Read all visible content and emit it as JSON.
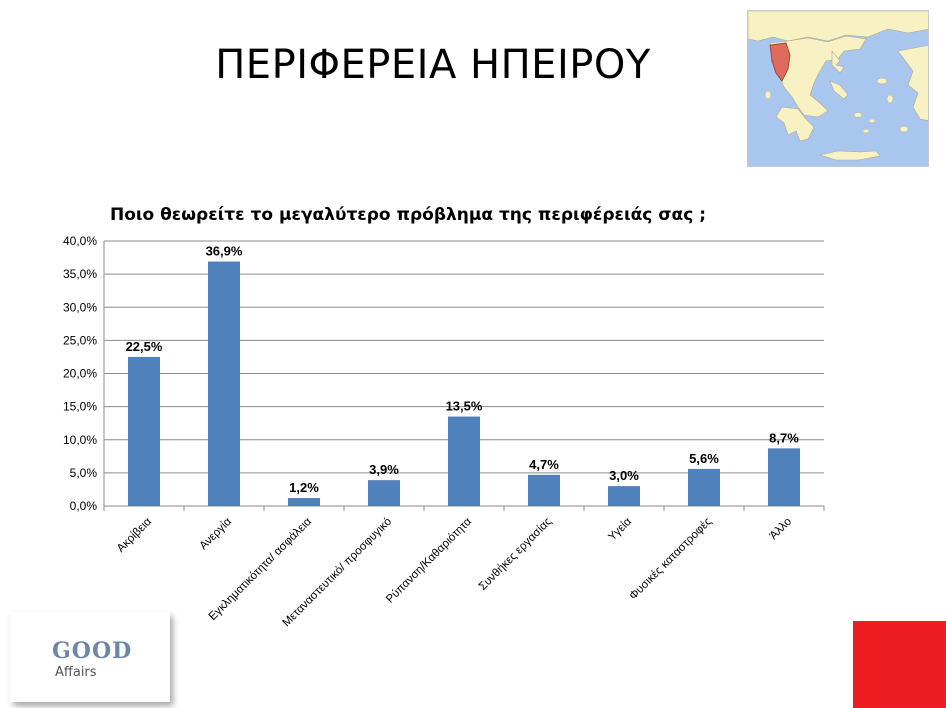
{
  "slide": {
    "title": "ΠΕΡΙΦΕΡΕΙΑ ΗΠΕΙΡΟΥ"
  },
  "logo": {
    "word1": "GOOD",
    "word2": "Affairs",
    "color": "#6e86a6"
  },
  "accent": {
    "red": "#ec1e24"
  },
  "map": {
    "icon": "greece-map-icon",
    "sea_color": "#a9c6ee",
    "land_color": "#f7f1c4",
    "highlight_color": "#e06a5e"
  },
  "chart_data": {
    "type": "bar",
    "title": "Ποιο θεωρείτε το μεγαλύτερο πρόβλημα της περιφέρειάς σας ;",
    "categories": [
      "Ακρίβεια",
      "Ανεργία",
      "Εγκληματικότητα/ ασφάλεια",
      "Μεταναστευτικό/ προσφυγικό",
      "Ρύπανση/Καθαριότητα",
      "Συνθήκες εργασίας",
      "Υγεία",
      "Φυσικές καταστροφές",
      "Άλλο"
    ],
    "values": [
      22.5,
      36.9,
      1.2,
      3.9,
      13.5,
      4.7,
      3.0,
      5.6,
      8.7
    ],
    "data_labels": [
      "22,5%",
      "36,9%",
      "1,2%",
      "3,9%",
      "13,5%",
      "4,7%",
      "3,0%",
      "5,6%",
      "8,7%"
    ],
    "y_ticks": [
      0,
      5,
      10,
      15,
      20,
      25,
      30,
      35,
      40
    ],
    "y_tick_labels": [
      "0,0%",
      "5,0%",
      "10,0%",
      "15,0%",
      "20,0%",
      "25,0%",
      "30,0%",
      "35,0%",
      "40,0%"
    ],
    "ylim": [
      0,
      40
    ],
    "grid": true,
    "legend": "none",
    "bar_color": "#4f81bd"
  }
}
